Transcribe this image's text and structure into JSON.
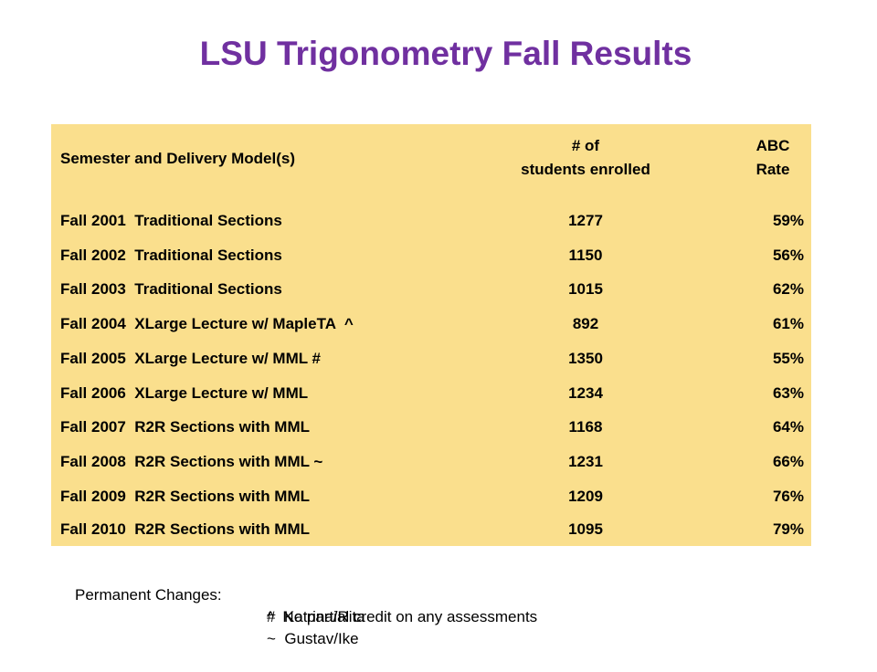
{
  "title": "LSU Trigonometry Fall Results",
  "table": {
    "headers": {
      "semester": "Semester and Delivery Model(s)",
      "enrolled_line1": "# of",
      "enrolled_line2": "students enrolled",
      "abc_line1": "ABC",
      "abc_line2": "Rate"
    },
    "rows": [
      {
        "semester": "Fall 2001  Traditional Sections",
        "enrolled": "1277",
        "abc": "59%"
      },
      {
        "semester": "Fall 2002  Traditional Sections",
        "enrolled": "1150",
        "abc": "56%"
      },
      {
        "semester": "Fall 2003  Traditional Sections",
        "enrolled": "1015",
        "abc": "62%"
      },
      {
        "semester": "Fall 2004  XLarge Lecture w/ MapleTA  ^",
        "enrolled": "892",
        "abc": "61%"
      },
      {
        "semester": "Fall 2005  XLarge Lecture w/ MML #",
        "enrolled": "1350",
        "abc": "55%"
      },
      {
        "semester": "Fall 2006  XLarge Lecture w/ MML",
        "enrolled": "1234",
        "abc": "63%"
      },
      {
        "semester": "Fall 2007  R2R Sections with MML",
        "enrolled": "1168",
        "abc": "64%"
      },
      {
        "semester": "Fall 2008  R2R Sections with MML ~",
        "enrolled": "1231",
        "abc": "66%"
      },
      {
        "semester": "Fall 2009  R2R Sections with MML",
        "enrolled": "1209",
        "abc": "76%"
      },
      {
        "semester": "Fall 2010  R2R Sections with MML",
        "enrolled": "1095",
        "abc": "79%"
      }
    ]
  },
  "notes": {
    "label": "Permanent Changes:",
    "items": [
      "^  No partial credit on any assessments",
      "#  Katrina/Rita",
      "~  Gustav/Ike"
    ]
  },
  "colors": {
    "title": "#7030a0",
    "table_background": "#fadf8d"
  }
}
